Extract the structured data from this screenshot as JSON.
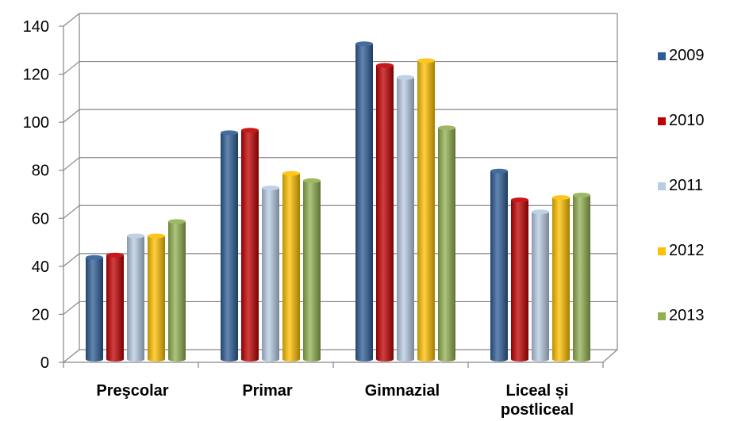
{
  "chart_data": {
    "type": "bar",
    "categories": [
      "Preşcolar",
      "Primar",
      "Gimnazial",
      "Liceal și\npostliceal"
    ],
    "series": [
      {
        "name": "2009",
        "color": "#2E5C95",
        "values": [
          42,
          94,
          131,
          78
        ]
      },
      {
        "name": "2010",
        "color": "#C00000",
        "values": [
          43,
          95,
          122,
          66
        ]
      },
      {
        "name": "2011",
        "color": "#B8CCE4",
        "values": [
          51,
          71,
          117,
          61
        ]
      },
      {
        "name": "2012",
        "color": "#FFC000",
        "values": [
          51,
          77,
          124,
          67
        ]
      },
      {
        "name": "2013",
        "color": "#92B050",
        "values": [
          57,
          74,
          96,
          68
        ]
      }
    ],
    "title": "",
    "xlabel": "",
    "ylabel": "",
    "ylim": [
      0,
      140
    ],
    "yticks": [
      "0",
      "20",
      "40",
      "60",
      "80",
      "100",
      "120",
      "140"
    ],
    "grid": true,
    "legend_position": "right",
    "style": "3d-cylinder"
  }
}
